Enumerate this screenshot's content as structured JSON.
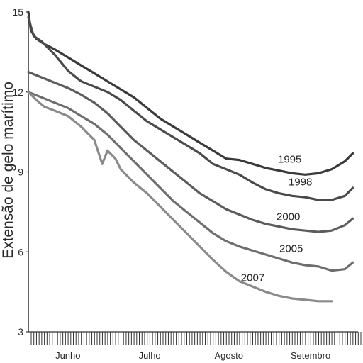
{
  "chart_data": {
    "type": "line",
    "title": "",
    "xlabel": "",
    "ylabel": "Extensão de gelo marítimo",
    "ylim": [
      3,
      15
    ],
    "yticks": [
      3,
      6,
      9,
      12,
      15
    ],
    "xlim": [
      0,
      125
    ],
    "months": [
      {
        "label": "Junho",
        "x": 15
      },
      {
        "label": "Julho",
        "x": 46
      },
      {
        "label": "Agosto",
        "x": 76
      },
      {
        "label": "Setembro",
        "x": 107
      }
    ],
    "x_minor_ticks_per_day": true,
    "grid": false,
    "legend": "inline",
    "series": [
      {
        "name": "1995",
        "color": "#3a3a3a",
        "x": [
          0,
          1,
          3,
          6,
          10,
          15,
          20,
          25,
          30,
          35,
          40,
          45,
          50,
          55,
          60,
          65,
          70,
          75,
          80,
          85,
          90,
          95,
          100,
          105,
          110,
          115,
          120,
          123
        ],
        "values": [
          15.0,
          14.3,
          14.0,
          13.8,
          13.6,
          13.3,
          13.0,
          12.7,
          12.4,
          12.1,
          11.8,
          11.4,
          11.0,
          10.7,
          10.4,
          10.1,
          9.8,
          9.5,
          9.45,
          9.3,
          9.15,
          9.05,
          8.95,
          8.9,
          8.95,
          9.1,
          9.4,
          9.7
        ]
      },
      {
        "name": "1998",
        "color": "#4a4a4a",
        "x": [
          0,
          2,
          5,
          10,
          15,
          20,
          25,
          30,
          35,
          40,
          45,
          50,
          55,
          60,
          65,
          70,
          75,
          80,
          85,
          90,
          95,
          100,
          105,
          110,
          115,
          120,
          123
        ],
        "values": [
          14.8,
          14.1,
          13.9,
          13.4,
          12.8,
          12.4,
          12.2,
          12.0,
          11.7,
          11.3,
          10.9,
          10.6,
          10.3,
          10.0,
          9.7,
          9.3,
          9.1,
          8.9,
          8.6,
          8.35,
          8.2,
          8.1,
          8.05,
          7.95,
          7.95,
          8.1,
          8.4
        ]
      },
      {
        "name": "2000",
        "color": "#5c5c5c",
        "x": [
          0,
          5,
          10,
          15,
          20,
          25,
          30,
          35,
          40,
          45,
          50,
          55,
          60,
          65,
          70,
          75,
          80,
          85,
          90,
          95,
          100,
          105,
          110,
          115,
          120,
          123
        ],
        "values": [
          12.75,
          12.55,
          12.35,
          12.15,
          11.9,
          11.6,
          11.2,
          10.7,
          10.2,
          9.8,
          9.4,
          9.0,
          8.6,
          8.2,
          7.9,
          7.6,
          7.4,
          7.2,
          7.05,
          6.95,
          6.85,
          6.8,
          6.75,
          6.8,
          7.0,
          7.25
        ]
      },
      {
        "name": "2005",
        "color": "#6e6e6e",
        "x": [
          0,
          5,
          10,
          15,
          20,
          25,
          30,
          35,
          40,
          45,
          50,
          55,
          60,
          65,
          70,
          75,
          80,
          85,
          90,
          95,
          100,
          105,
          110,
          115,
          120,
          123
        ],
        "values": [
          12.0,
          11.8,
          11.6,
          11.4,
          11.1,
          10.8,
          10.4,
          9.9,
          9.4,
          8.9,
          8.4,
          7.9,
          7.5,
          7.1,
          6.7,
          6.4,
          6.2,
          6.05,
          5.9,
          5.75,
          5.6,
          5.5,
          5.45,
          5.3,
          5.35,
          5.6
        ]
      },
      {
        "name": "2007",
        "color": "#8a8a8a",
        "x": [
          0,
          3,
          6,
          10,
          15,
          20,
          25,
          28,
          30,
          33,
          35,
          40,
          45,
          50,
          55,
          60,
          65,
          70,
          75,
          80,
          85,
          90,
          95,
          100,
          105,
          110,
          115
        ],
        "values": [
          12.0,
          11.7,
          11.45,
          11.3,
          11.1,
          10.7,
          10.2,
          9.3,
          9.8,
          9.5,
          9.1,
          8.6,
          8.2,
          7.7,
          7.2,
          6.7,
          6.2,
          5.7,
          5.25,
          4.9,
          4.7,
          4.5,
          4.35,
          4.25,
          4.2,
          4.15,
          4.15
        ]
      }
    ]
  }
}
